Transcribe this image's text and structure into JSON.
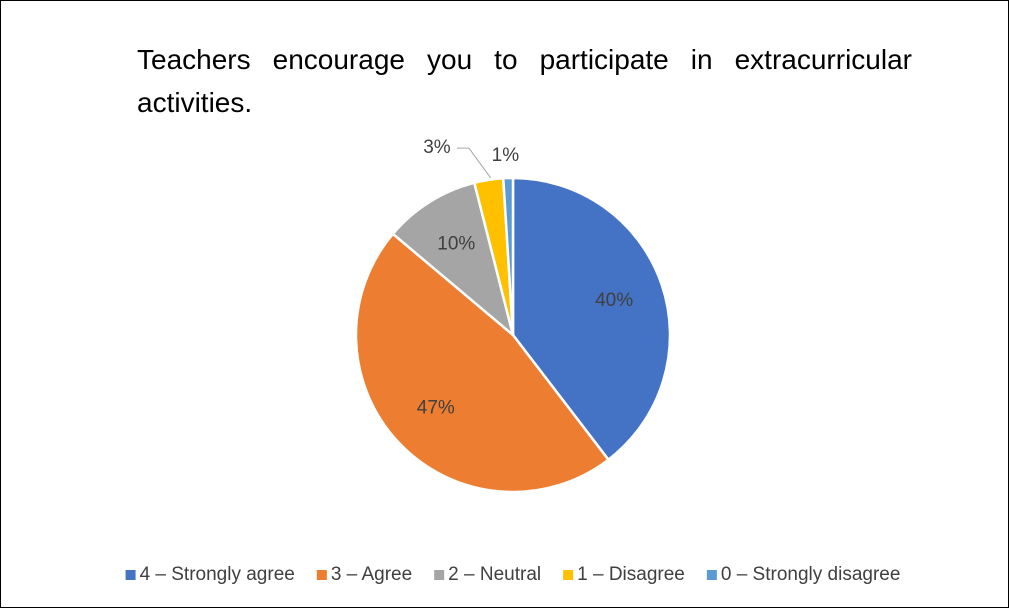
{
  "chart_data": {
    "type": "pie",
    "title": "Teachers encourage you to participate in extracurricular activities.",
    "categories": [
      "4 – Strongly agree",
      "3 – Agree",
      "2 – Neutral",
      "1 – Disagree",
      "0 – Strongly disagree"
    ],
    "values": [
      40,
      47,
      10,
      3,
      1
    ],
    "value_labels": [
      "40%",
      "47%",
      "10%",
      "3%",
      "1%"
    ],
    "colors": [
      "#4472c4",
      "#ed7d31",
      "#a5a5a5",
      "#ffc000",
      "#5b9bd5"
    ],
    "legend": "bottom"
  }
}
